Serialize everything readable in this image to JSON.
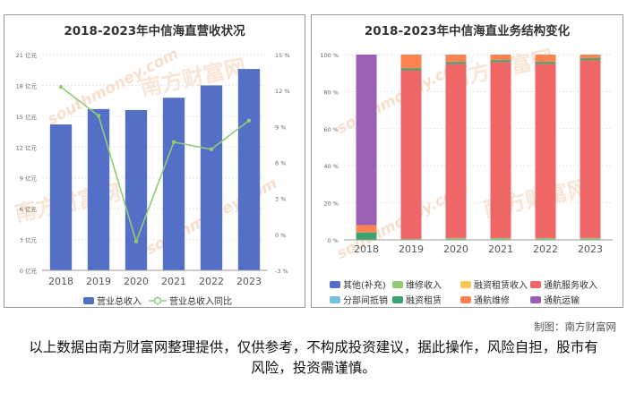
{
  "left_chart": {
    "title": "2018-2023年中信海直营收状况",
    "legend": {
      "bar": "营业总收入",
      "line": "营业总收入同比"
    },
    "colors": {
      "bar": "#5470c6",
      "line": "#91cc75"
    }
  },
  "right_chart": {
    "title": "2018-2023年中信海直业务结构变化",
    "colors": [
      "#5470c6",
      "#91cc75",
      "#fac858",
      "#ee6666",
      "#73c0de",
      "#3ba272",
      "#fc8452",
      "#9a60b4"
    ]
  },
  "watermark": {
    "text": "南方财富网",
    "url": "southmoney.com"
  },
  "credit": "制图：南方财富网",
  "disclaimer": "以上数据由南方财富网整理提供，仅供参考，不构成投资建议，据此操作，风险自担，股市有风险，投资需谨慎。",
  "chart_data": [
    {
      "type": "bar",
      "title": "2018-2023年中信海直营收状况",
      "categories": [
        "2018",
        "2019",
        "2020",
        "2021",
        "2022",
        "2023"
      ],
      "series": [
        {
          "name": "营业总收入",
          "type": "bar",
          "axis": "left",
          "values": [
            14.2,
            15.7,
            15.6,
            16.8,
            18.0,
            19.6
          ]
        },
        {
          "name": "营业总收入同比",
          "type": "line",
          "axis": "right",
          "values": [
            12.3,
            9.9,
            -0.6,
            7.7,
            7.1,
            9.5
          ]
        }
      ],
      "ylim_left": [
        0,
        21
      ],
      "ylim_right": [
        -3,
        15
      ],
      "yticks_left": [
        "0 亿元",
        "3 亿元",
        "6 亿元",
        "9 亿元",
        "12 亿元",
        "15 亿元",
        "18 亿元",
        "21 亿元"
      ],
      "yticks_right": [
        "-3 %",
        "0 %",
        "3 %",
        "6 %",
        "9 %",
        "12 %",
        "15 %"
      ]
    },
    {
      "type": "bar",
      "stacked": true,
      "title": "2018-2023年中信海直业务结构变化",
      "categories": [
        "2018",
        "2019",
        "2020",
        "2021",
        "2022",
        "2023"
      ],
      "ylim": [
        0,
        100
      ],
      "yticks": [
        "0 %",
        "20 %",
        "40 %",
        "60 %",
        "80 %",
        "100 %"
      ],
      "series": [
        {
          "name": "其他(补充)",
          "values": [
            0,
            0,
            0,
            0,
            0,
            0
          ]
        },
        {
          "name": "维修收入",
          "values": [
            0,
            0.5,
            1,
            1,
            1,
            1
          ]
        },
        {
          "name": "融资租赁收入",
          "values": [
            0,
            0,
            0,
            0,
            0,
            0
          ]
        },
        {
          "name": "通航服务收入",
          "values": [
            0,
            91,
            94,
            95,
            94,
            96
          ]
        },
        {
          "name": "分部间抵销",
          "values": [
            0,
            0,
            0,
            0,
            0,
            0
          ]
        },
        {
          "name": "融资租赁",
          "values": [
            4,
            1,
            1,
            1,
            1,
            1
          ]
        },
        {
          "name": "通航维修",
          "values": [
            4,
            7.5,
            4,
            3,
            4,
            2
          ]
        },
        {
          "name": "通航运输",
          "values": [
            92,
            0,
            0,
            0,
            0,
            0
          ]
        }
      ]
    }
  ]
}
